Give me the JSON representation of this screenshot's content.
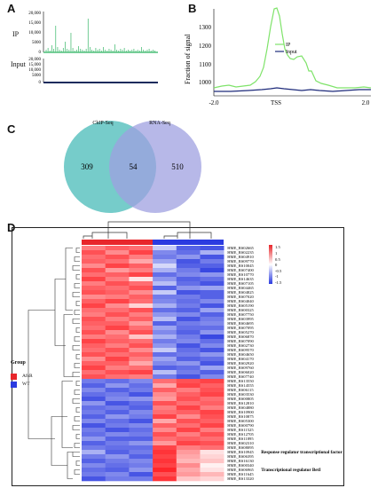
{
  "panels": {
    "A": {
      "letter": "A",
      "ip_label": "IP",
      "input_label": "Input",
      "ip_yticks": [
        "20,000",
        "15,000",
        "10,000",
        "5000",
        "0"
      ],
      "input_yticks": [
        "20,000",
        "15,000",
        "10,000",
        "5000",
        "0"
      ],
      "ip_color": "#4fbf7a",
      "input_color": "#1a2b5c"
    },
    "B": {
      "letter": "B",
      "ylabel": "Fraction of signal",
      "legend": [
        "IP",
        "Input"
      ],
      "xticks": [
        "-2.0",
        "TSS",
        "2.0"
      ],
      "yticks": [
        "1300",
        "1200",
        "1100",
        "1000"
      ],
      "ip_color": "#7fe36a",
      "input_color": "#1d2a7a"
    },
    "C": {
      "letter": "C",
      "set_a": "ChIP-Seq",
      "set_b": "RNA-Seq",
      "only_a": "309",
      "both": "54",
      "only_b": "510",
      "color_a": "#5ec3c1",
      "color_b": "#9fa0e0"
    },
    "D": {
      "letter": "D",
      "group_title": "Group",
      "groups": [
        {
          "name": "AfsR",
          "color": "#e8262b"
        },
        {
          "name": "WT",
          "color": "#2b3be0"
        }
      ],
      "colorbar_ticks": [
        "1.5",
        "1",
        "0.5",
        "0",
        "-0.5",
        "-1",
        "-1.5"
      ],
      "row_labels": [
        "HME_RS02665",
        "HME_RS02235",
        "HME_RS04910",
        "HME_RS09770",
        "HME_RS10045",
        "HME_RS07400",
        "HME_RS10770",
        "HME_RS14635",
        "HME_RS07105",
        "HME_RS04465",
        "HME_RS04825",
        "HME_RS07020",
        "HME_RS04040",
        "HME_RS05190",
        "HME_RS00325",
        "HME_RS07750",
        "HME_RS03995",
        "HME_RS04695",
        "HME_RS07095",
        "HME_RS05270",
        "HME_RS06870",
        "HME_RS07090",
        "HME_RS02730",
        "HME_RS09570",
        "HME_RS04650",
        "HME_RS04170",
        "HME_RS02920",
        "HME_RS09760",
        "HME_RS06020",
        "HME_RS07740",
        "HME_RS13550",
        "HME_RS14555",
        "HME_RS06115",
        "HME_RS03530",
        "HME_RS00805",
        "HME_RS12810",
        "HME_RS04880",
        "HME_RS10900",
        "HME_RS10875",
        "HME_RS05300",
        "HME_RS00790",
        "HME_RS11525",
        "HME_RS12705",
        "HME_RS11895",
        "HME_RS02310",
        "HME_RS08095",
        "HME_RS10945",
        "HME_RS06395",
        "HME_RS16130",
        "HME_RS00340",
        "HME_RS06965",
        "HME_RS11645",
        "HME_RS13320"
      ],
      "annotations": [
        {
          "row": 46,
          "text": "Response regulator transcriptional factor"
        },
        {
          "row": 50,
          "text": "Transcriptional regulator BetI"
        }
      ],
      "matrix": [
        [
          0.9,
          1.1,
          1.0,
          -0.4,
          -1.2,
          -1.3
        ],
        [
          1.2,
          0.8,
          1.3,
          -0.9,
          -1.1,
          -0.6
        ],
        [
          1.0,
          1.2,
          0.9,
          -1.0,
          -0.8,
          -1.3
        ],
        [
          1.1,
          1.0,
          0.6,
          -0.7,
          -1.3,
          -1.0
        ],
        [
          0.8,
          1.3,
          1.1,
          -0.3,
          -1.2,
          -1.2
        ],
        [
          1.2,
          0.7,
          0.9,
          -0.6,
          -1.0,
          -1.4
        ],
        [
          1.0,
          1.1,
          1.3,
          -1.1,
          -0.9,
          -0.8
        ],
        [
          1.3,
          0.9,
          0.2,
          -0.8,
          -1.2,
          -1.1
        ],
        [
          0.9,
          1.2,
          1.0,
          -0.5,
          -1.1,
          -1.3
        ],
        [
          1.1,
          1.0,
          1.2,
          -1.2,
          -0.8,
          -0.7
        ],
        [
          1.2,
          1.1,
          0.8,
          -0.4,
          -1.3,
          -1.2
        ],
        [
          0.8,
          0.9,
          1.1,
          -1.0,
          -1.0,
          -1.2
        ],
        [
          1.1,
          1.3,
          1.0,
          -0.9,
          -1.1,
          -0.9
        ],
        [
          1.3,
          0.8,
          0.3,
          -0.6,
          -1.0,
          -1.3
        ],
        [
          1.0,
          1.0,
          1.2,
          -1.1,
          -1.2,
          -0.7
        ],
        [
          0.9,
          1.2,
          0.9,
          -0.8,
          -0.9,
          -1.2
        ],
        [
          1.2,
          0.9,
          1.1,
          -0.5,
          -1.3,
          -1.0
        ],
        [
          1.1,
          1.1,
          0.7,
          -1.2,
          -1.0,
          -0.9
        ],
        [
          1.0,
          1.3,
          1.0,
          -0.7,
          -1.1,
          -1.1
        ],
        [
          1.2,
          0.8,
          1.2,
          -0.9,
          -1.2,
          -0.8
        ],
        [
          0.9,
          1.0,
          0.4,
          -0.6,
          -1.0,
          -1.4
        ],
        [
          1.3,
          1.1,
          1.0,
          -1.0,
          -0.9,
          -1.1
        ],
        [
          1.1,
          0.9,
          1.2,
          -0.8,
          -1.3,
          -0.9
        ],
        [
          1.0,
          1.2,
          0.8,
          -0.4,
          -1.1,
          -1.3
        ],
        [
          1.2,
          1.0,
          1.1,
          -1.1,
          -1.0,
          -0.8
        ],
        [
          0.8,
          1.3,
          0.9,
          -0.7,
          -1.2,
          -1.1
        ],
        [
          1.1,
          1.1,
          0.6,
          -0.9,
          -0.8,
          -1.3
        ],
        [
          1.3,
          0.9,
          1.0,
          -1.2,
          -1.1,
          -0.7
        ],
        [
          1.0,
          1.2,
          1.3,
          -0.5,
          -1.0,
          -1.2
        ],
        [
          1.2,
          1.0,
          0.9,
          -1.0,
          -1.3,
          -0.9
        ],
        [
          -1.0,
          -1.1,
          -0.9,
          1.0,
          1.2,
          1.3
        ],
        [
          -1.2,
          -0.8,
          -1.1,
          0.6,
          1.3,
          1.1
        ],
        [
          -0.9,
          -1.2,
          -1.0,
          1.1,
          0.9,
          1.2
        ],
        [
          -1.1,
          -1.0,
          -1.3,
          0.8,
          1.1,
          1.3
        ],
        [
          -1.3,
          -0.9,
          -0.8,
          0.7,
          1.2,
          1.0
        ],
        [
          -0.8,
          -1.3,
          -1.1,
          1.2,
          1.0,
          1.1
        ],
        [
          -1.1,
          -1.0,
          -1.2,
          0.9,
          1.3,
          0.9
        ],
        [
          -1.0,
          -1.2,
          -0.9,
          1.0,
          1.1,
          1.3
        ],
        [
          -1.2,
          -0.8,
          -1.0,
          1.3,
          0.8,
          1.2
        ],
        [
          -0.9,
          -1.1,
          -1.3,
          0.6,
          1.2,
          1.1
        ],
        [
          -1.3,
          -1.0,
          -0.9,
          1.1,
          1.0,
          1.3
        ],
        [
          -1.0,
          -1.3,
          -1.1,
          0.8,
          1.3,
          0.9
        ],
        [
          -1.1,
          -0.9,
          -1.0,
          1.2,
          0.9,
          1.2
        ],
        [
          -0.8,
          -1.2,
          -1.2,
          1.0,
          1.1,
          1.0
        ],
        [
          -1.2,
          -1.0,
          -0.8,
          0.7,
          1.3,
          1.2
        ],
        [
          -1.0,
          -1.1,
          -1.1,
          1.3,
          0.9,
          1.0
        ],
        [
          -0.6,
          -1.2,
          -1.0,
          1.4,
          0.7,
          0.2
        ],
        [
          -1.0,
          -0.8,
          -1.2,
          1.3,
          0.6,
          0.3
        ],
        [
          -1.2,
          -1.0,
          -0.9,
          1.4,
          0.5,
          0.4
        ],
        [
          -0.9,
          -1.1,
          -1.0,
          1.3,
          0.8,
          0.1
        ],
        [
          -1.1,
          -1.2,
          -0.8,
          1.5,
          0.6,
          0.2
        ],
        [
          -1.0,
          -0.9,
          -1.3,
          1.2,
          0.7,
          0.5
        ],
        [
          -1.3,
          -1.0,
          -1.0,
          1.4,
          0.4,
          0.3
        ]
      ]
    }
  }
}
